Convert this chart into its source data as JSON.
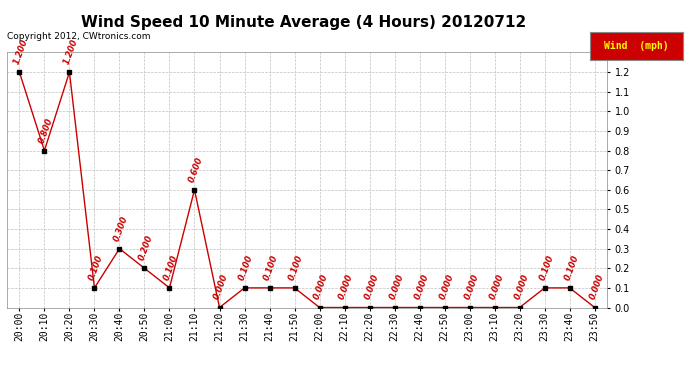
{
  "title": "Wind Speed 10 Minute Average (4 Hours) 20120712",
  "copyright": "Copyright 2012, CWtronics.com",
  "legend_label": "Wind  (mph)",
  "x_labels": [
    "20:00",
    "20:10",
    "20:20",
    "20:30",
    "20:40",
    "20:50",
    "21:00",
    "21:10",
    "21:20",
    "21:30",
    "21:40",
    "21:50",
    "22:00",
    "22:10",
    "22:20",
    "22:30",
    "22:40",
    "22:50",
    "23:00",
    "23:10",
    "23:20",
    "23:30",
    "23:40",
    "23:50"
  ],
  "y_values": [
    1.2,
    0.8,
    1.2,
    0.1,
    0.3,
    0.2,
    0.1,
    0.6,
    0.0,
    0.1,
    0.1,
    0.1,
    0.0,
    0.0,
    0.0,
    0.0,
    0.0,
    0.0,
    0.0,
    0.0,
    0.0,
    0.1,
    0.1,
    0.0
  ],
  "line_color": "#cc0000",
  "marker_color": "#000000",
  "annotation_color": "#cc0000",
  "background_color": "#ffffff",
  "grid_color": "#c0c0c0",
  "ylim": [
    0.0,
    1.3
  ],
  "yticks": [
    0.0,
    0.1,
    0.2,
    0.3,
    0.4,
    0.5,
    0.6,
    0.7,
    0.8,
    0.9,
    1.0,
    1.1,
    1.2
  ],
  "legend_bg": "#cc0000",
  "legend_text_color": "#ffff00",
  "title_fontsize": 11,
  "annotation_fontsize": 6,
  "tick_fontsize": 7,
  "copyright_fontsize": 6.5
}
